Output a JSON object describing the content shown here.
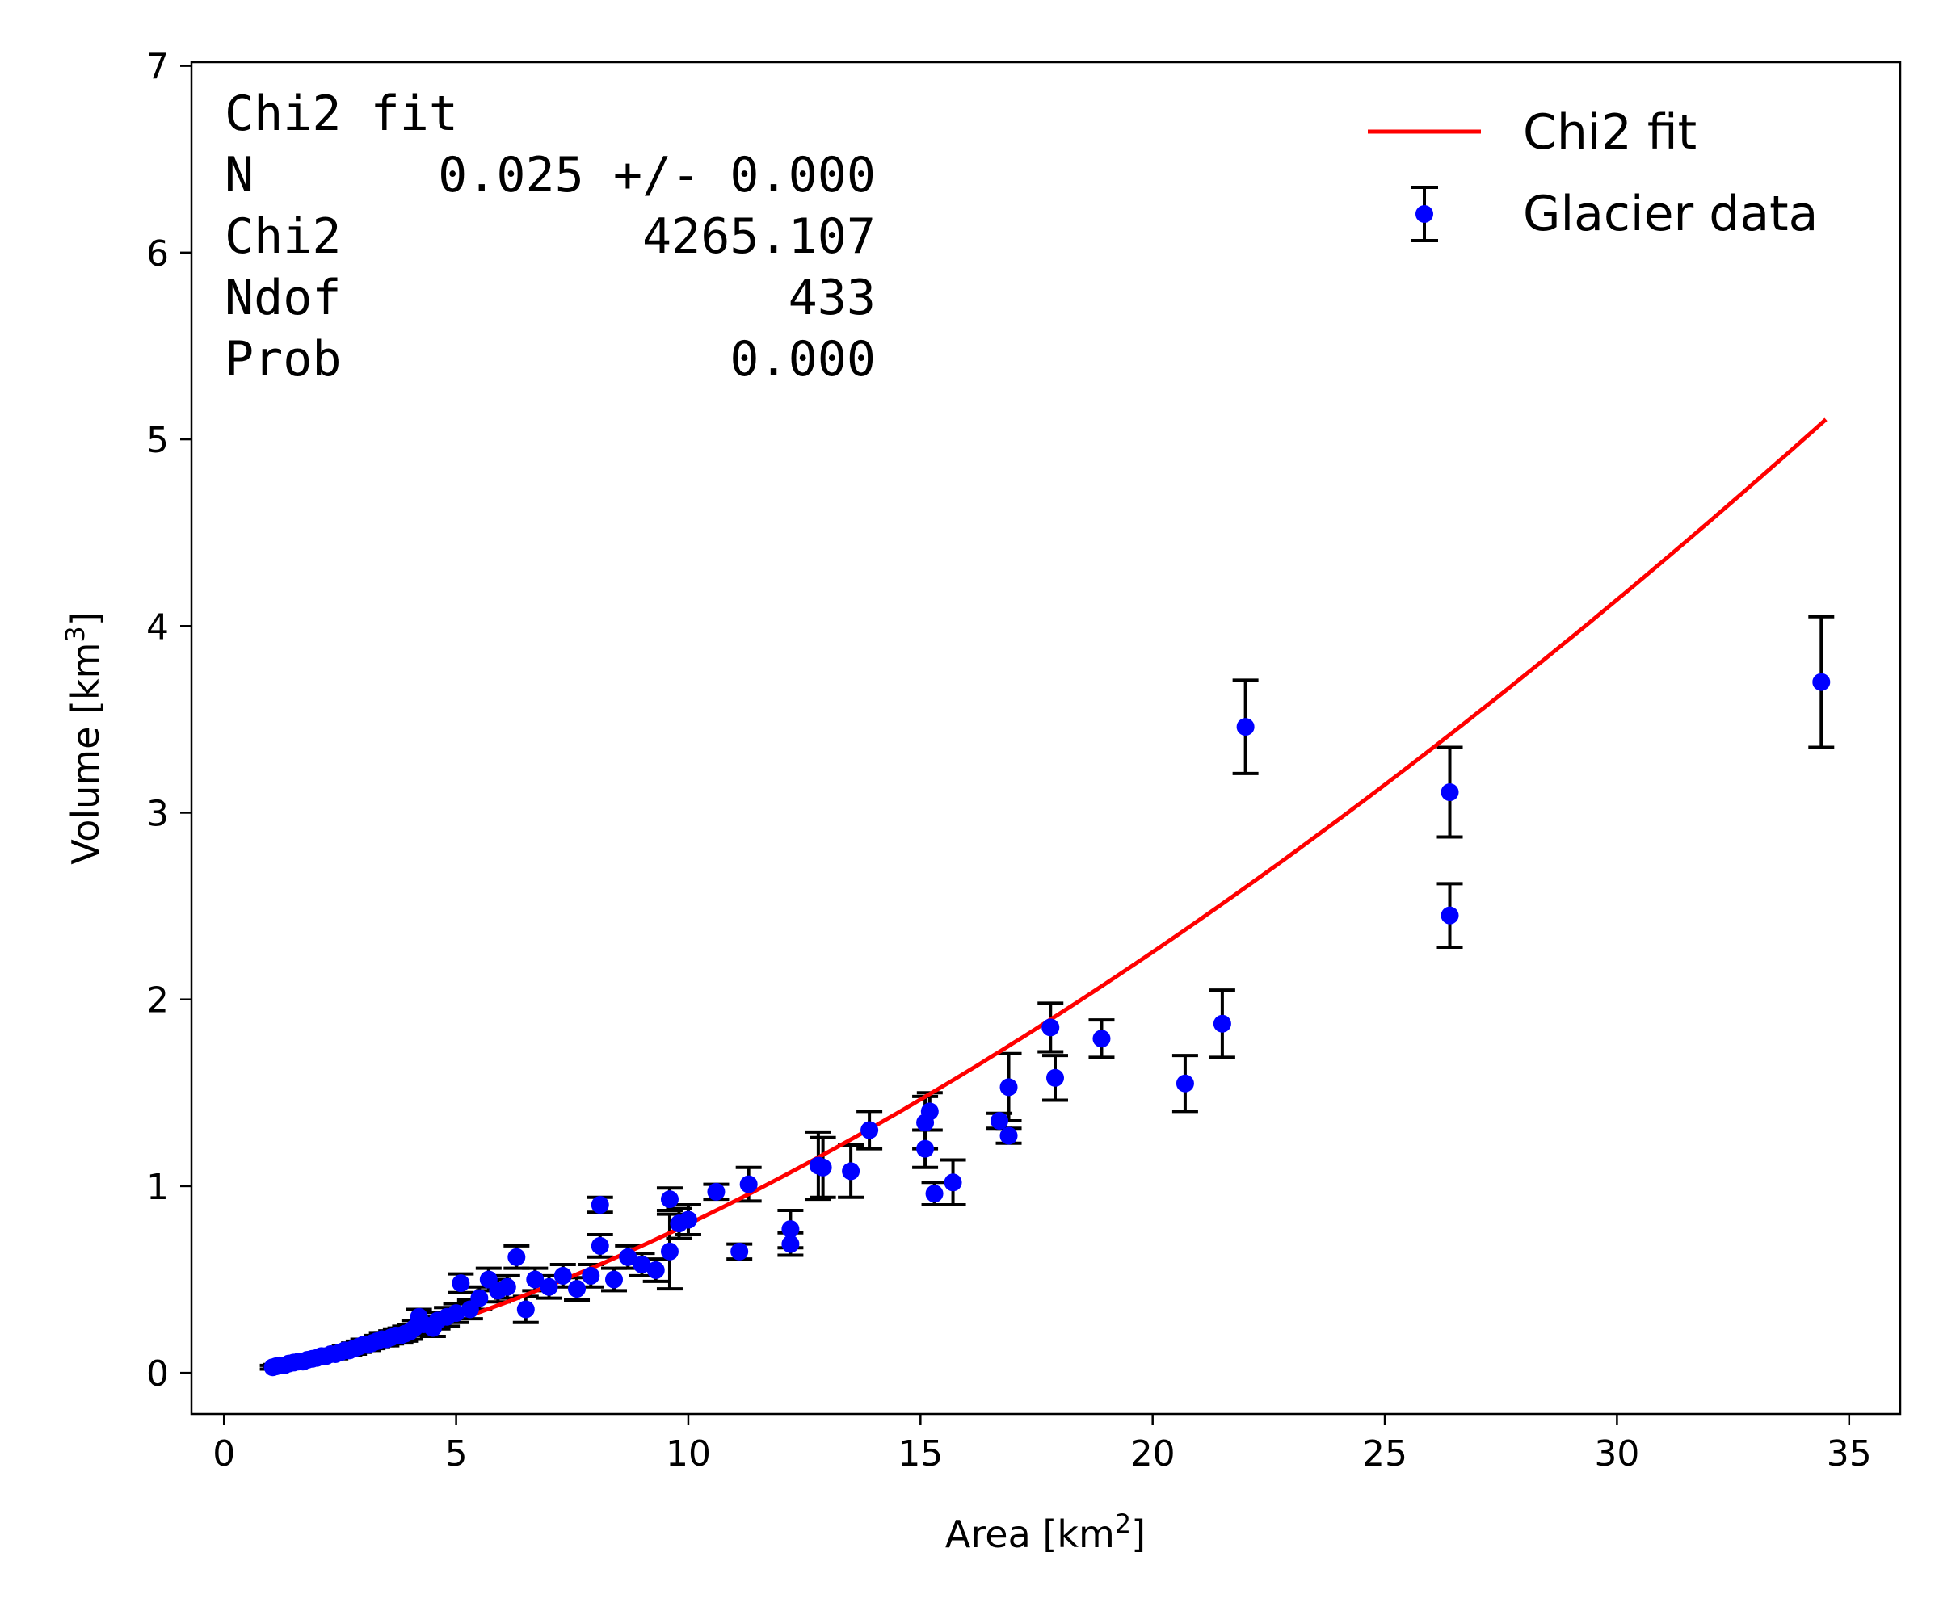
{
  "chart_data": {
    "type": "scatter",
    "xlabel": "Area [km",
    "xlabel_sup": "2",
    "xlabel_end": "]",
    "ylabel": "Volume [km",
    "ylabel_sup": "3",
    "ylabel_end": "]",
    "xlim": [
      -0.7,
      36.1
    ],
    "ylim": [
      -0.22,
      7.02
    ],
    "xticks": [
      0,
      5,
      10,
      15,
      20,
      25,
      30,
      35
    ],
    "yticks": [
      0,
      1,
      2,
      3,
      4,
      5,
      6,
      7
    ],
    "legend_position": "upper right",
    "fit_box": {
      "title": "Chi2 fit",
      "rows": [
        {
          "label": "N",
          "value": "0.025 +/- 0.000"
        },
        {
          "label": "Chi2",
          "value": "4265.107"
        },
        {
          "label": "Ndof",
          "value": "433"
        },
        {
          "label": "Prob",
          "value": "0.000"
        }
      ]
    },
    "series": [
      {
        "name": "Chi2 fit",
        "kind": "line",
        "color": "#ff0000",
        "model": "N*A^1.5",
        "N": 0.0252,
        "exponent": 1.5,
        "x_range": [
          5.3,
          34.5
        ]
      },
      {
        "name": "Glacier data",
        "kind": "errorbar",
        "color": "#0000ff",
        "error_color": "#000000",
        "points": [
          {
            "x": 1.05,
            "y": 0.03,
            "err": 0.01
          },
          {
            "x": 1.12,
            "y": 0.035,
            "err": 0.01
          },
          {
            "x": 1.2,
            "y": 0.04,
            "err": 0.01
          },
          {
            "x": 1.3,
            "y": 0.04,
            "err": 0.01
          },
          {
            "x": 1.4,
            "y": 0.05,
            "err": 0.015
          },
          {
            "x": 1.5,
            "y": 0.055,
            "err": 0.015
          },
          {
            "x": 1.6,
            "y": 0.06,
            "err": 0.015
          },
          {
            "x": 1.7,
            "y": 0.06,
            "err": 0.015
          },
          {
            "x": 1.8,
            "y": 0.07,
            "err": 0.02
          },
          {
            "x": 1.9,
            "y": 0.075,
            "err": 0.02
          },
          {
            "x": 2.0,
            "y": 0.08,
            "err": 0.02
          },
          {
            "x": 2.1,
            "y": 0.09,
            "err": 0.02
          },
          {
            "x": 2.2,
            "y": 0.09,
            "err": 0.02
          },
          {
            "x": 2.3,
            "y": 0.1,
            "err": 0.02
          },
          {
            "x": 2.4,
            "y": 0.1,
            "err": 0.025
          },
          {
            "x": 2.5,
            "y": 0.11,
            "err": 0.025
          },
          {
            "x": 2.6,
            "y": 0.12,
            "err": 0.025
          },
          {
            "x": 2.7,
            "y": 0.12,
            "err": 0.025
          },
          {
            "x": 2.8,
            "y": 0.13,
            "err": 0.03
          },
          {
            "x": 2.9,
            "y": 0.14,
            "err": 0.03
          },
          {
            "x": 3.0,
            "y": 0.15,
            "err": 0.03
          },
          {
            "x": 3.1,
            "y": 0.15,
            "err": 0.03
          },
          {
            "x": 3.2,
            "y": 0.16,
            "err": 0.03
          },
          {
            "x": 3.3,
            "y": 0.17,
            "err": 0.03
          },
          {
            "x": 3.4,
            "y": 0.18,
            "err": 0.035
          },
          {
            "x": 3.5,
            "y": 0.18,
            "err": 0.035
          },
          {
            "x": 3.6,
            "y": 0.19,
            "err": 0.035
          },
          {
            "x": 3.7,
            "y": 0.2,
            "err": 0.035
          },
          {
            "x": 3.8,
            "y": 0.2,
            "err": 0.04
          },
          {
            "x": 3.9,
            "y": 0.21,
            "err": 0.04
          },
          {
            "x": 4.0,
            "y": 0.22,
            "err": 0.04
          },
          {
            "x": 4.1,
            "y": 0.24,
            "err": 0.04
          },
          {
            "x": 4.2,
            "y": 0.3,
            "err": 0.04
          },
          {
            "x": 4.3,
            "y": 0.26,
            "err": 0.045
          },
          {
            "x": 4.5,
            "y": 0.24,
            "err": 0.045
          },
          {
            "x": 4.6,
            "y": 0.28,
            "err": 0.045
          },
          {
            "x": 4.8,
            "y": 0.3,
            "err": 0.05
          },
          {
            "x": 5.0,
            "y": 0.32,
            "err": 0.05
          },
          {
            "x": 5.1,
            "y": 0.48,
            "err": 0.05
          },
          {
            "x": 5.3,
            "y": 0.34,
            "err": 0.05
          },
          {
            "x": 5.5,
            "y": 0.4,
            "err": 0.06
          },
          {
            "x": 5.7,
            "y": 0.5,
            "err": 0.06
          },
          {
            "x": 5.9,
            "y": 0.44,
            "err": 0.06
          },
          {
            "x": 6.1,
            "y": 0.46,
            "err": 0.06
          },
          {
            "x": 6.3,
            "y": 0.62,
            "err": 0.06
          },
          {
            "x": 6.5,
            "y": 0.34,
            "err": 0.07
          },
          {
            "x": 6.7,
            "y": 0.5,
            "err": 0.06
          },
          {
            "x": 7.0,
            "y": 0.46,
            "err": 0.06
          },
          {
            "x": 7.3,
            "y": 0.52,
            "err": 0.06
          },
          {
            "x": 7.6,
            "y": 0.45,
            "err": 0.06
          },
          {
            "x": 7.9,
            "y": 0.52,
            "err": 0.06
          },
          {
            "x": 8.1,
            "y": 0.9,
            "err": 0.04
          },
          {
            "x": 8.1,
            "y": 0.68,
            "err": 0.06
          },
          {
            "x": 8.4,
            "y": 0.5,
            "err": 0.06
          },
          {
            "x": 8.7,
            "y": 0.62,
            "err": 0.06
          },
          {
            "x": 9.0,
            "y": 0.58,
            "err": 0.06
          },
          {
            "x": 9.3,
            "y": 0.55,
            "err": 0.06
          },
          {
            "x": 9.6,
            "y": 0.65,
            "err": 0.2
          },
          {
            "x": 9.6,
            "y": 0.93,
            "err": 0.06
          },
          {
            "x": 9.8,
            "y": 0.8,
            "err": 0.08
          },
          {
            "x": 10.0,
            "y": 0.82,
            "err": 0.08
          },
          {
            "x": 10.6,
            "y": 0.97,
            "err": 0.04
          },
          {
            "x": 11.1,
            "y": 0.65,
            "err": 0.04
          },
          {
            "x": 11.3,
            "y": 1.01,
            "err": 0.09
          },
          {
            "x": 12.2,
            "y": 0.77,
            "err": 0.1
          },
          {
            "x": 12.2,
            "y": 0.69,
            "err": 0.06
          },
          {
            "x": 12.8,
            "y": 1.11,
            "err": 0.18
          },
          {
            "x": 12.9,
            "y": 1.1,
            "err": 0.16
          },
          {
            "x": 13.5,
            "y": 1.08,
            "err": 0.14
          },
          {
            "x": 13.9,
            "y": 1.3,
            "err": 0.1
          },
          {
            "x": 15.1,
            "y": 1.34,
            "err": 0.14
          },
          {
            "x": 15.1,
            "y": 1.2,
            "err": 0.1
          },
          {
            "x": 15.2,
            "y": 1.4,
            "err": 0.1
          },
          {
            "x": 15.3,
            "y": 0.96,
            "err": 0.06
          },
          {
            "x": 15.7,
            "y": 1.02,
            "err": 0.12
          },
          {
            "x": 16.7,
            "y": 1.35,
            "err": 0.04
          },
          {
            "x": 16.9,
            "y": 1.53,
            "err": 0.18
          },
          {
            "x": 16.9,
            "y": 1.27,
            "err": 0.04
          },
          {
            "x": 17.8,
            "y": 1.85,
            "err": 0.13
          },
          {
            "x": 17.9,
            "y": 1.58,
            "err": 0.12
          },
          {
            "x": 18.9,
            "y": 1.79,
            "err": 0.1
          },
          {
            "x": 20.7,
            "y": 1.55,
            "err": 0.15
          },
          {
            "x": 21.5,
            "y": 1.87,
            "err": 0.18
          },
          {
            "x": 22.0,
            "y": 3.46,
            "err": 0.25
          },
          {
            "x": 26.4,
            "y": 3.11,
            "err": 0.24
          },
          {
            "x": 26.4,
            "y": 2.45,
            "err": 0.17
          },
          {
            "x": 34.4,
            "y": 3.7,
            "err": 0.35
          }
        ]
      }
    ]
  }
}
